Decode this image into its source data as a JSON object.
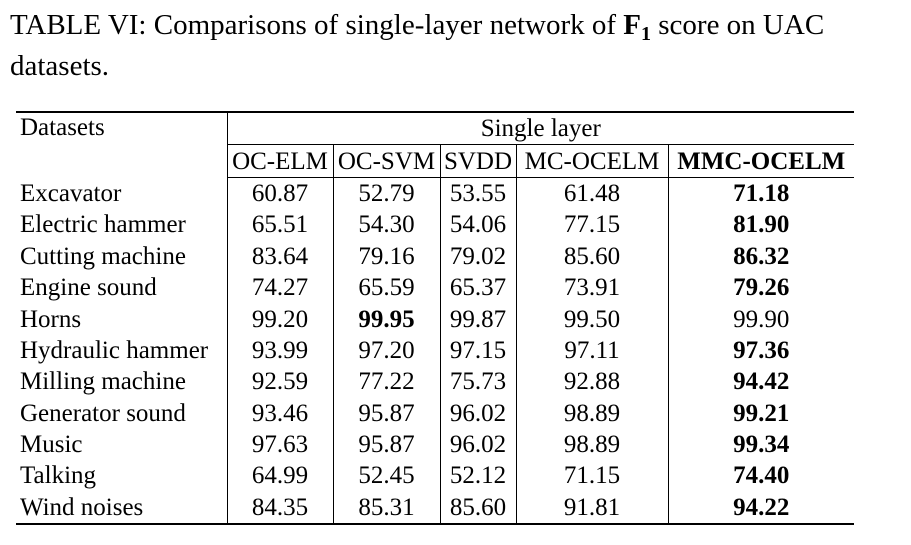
{
  "caption": {
    "prefix": "TABLE VI: Comparisons of single-layer network of ",
    "metric_symbol": "F",
    "metric_subscript": "1",
    "suffix": " score on UAC datasets."
  },
  "table": {
    "header_first": "Datasets",
    "header_group": "Single layer",
    "columns": [
      "OC-ELM",
      "OC-SVM",
      "SVDD",
      "MC-OCELM",
      "MMC-OCELM"
    ],
    "rows": [
      {
        "name": "Excavator",
        "values": [
          "60.87",
          "52.79",
          "53.55",
          "61.48",
          "71.18"
        ],
        "bold_index": 4
      },
      {
        "name": "Electric hammer",
        "values": [
          "65.51",
          "54.30",
          "54.06",
          "77.15",
          "81.90"
        ],
        "bold_index": 4
      },
      {
        "name": "Cutting machine",
        "values": [
          "83.64",
          "79.16",
          "79.02",
          "85.60",
          "86.32"
        ],
        "bold_index": 4
      },
      {
        "name": "Engine sound",
        "values": [
          "74.27",
          "65.59",
          "65.37",
          "73.91",
          "79.26"
        ],
        "bold_index": 4
      },
      {
        "name": "Horns",
        "values": [
          "99.20",
          "99.95",
          "99.87",
          "99.50",
          "99.90"
        ],
        "bold_index": 1
      },
      {
        "name": "Hydraulic hammer",
        "values": [
          "93.99",
          "97.20",
          "97.15",
          "97.11",
          "97.36"
        ],
        "bold_index": 4
      },
      {
        "name": "Milling machine",
        "values": [
          "92.59",
          "77.22",
          "75.73",
          "92.88",
          "94.42"
        ],
        "bold_index": 4
      },
      {
        "name": "Generator sound",
        "values": [
          "93.46",
          "95.87",
          "96.02",
          "98.89",
          "99.21"
        ],
        "bold_index": 4
      },
      {
        "name": "Music",
        "values": [
          "97.63",
          "95.87",
          "96.02",
          "98.89",
          "99.34"
        ],
        "bold_index": 4
      },
      {
        "name": "Talking",
        "values": [
          "64.99",
          "52.45",
          "52.12",
          "71.15",
          "74.40"
        ],
        "bold_index": 4
      },
      {
        "name": "Wind noises",
        "values": [
          "84.35",
          "85.31",
          "85.60",
          "91.81",
          "94.22"
        ],
        "bold_index": 4
      }
    ]
  }
}
